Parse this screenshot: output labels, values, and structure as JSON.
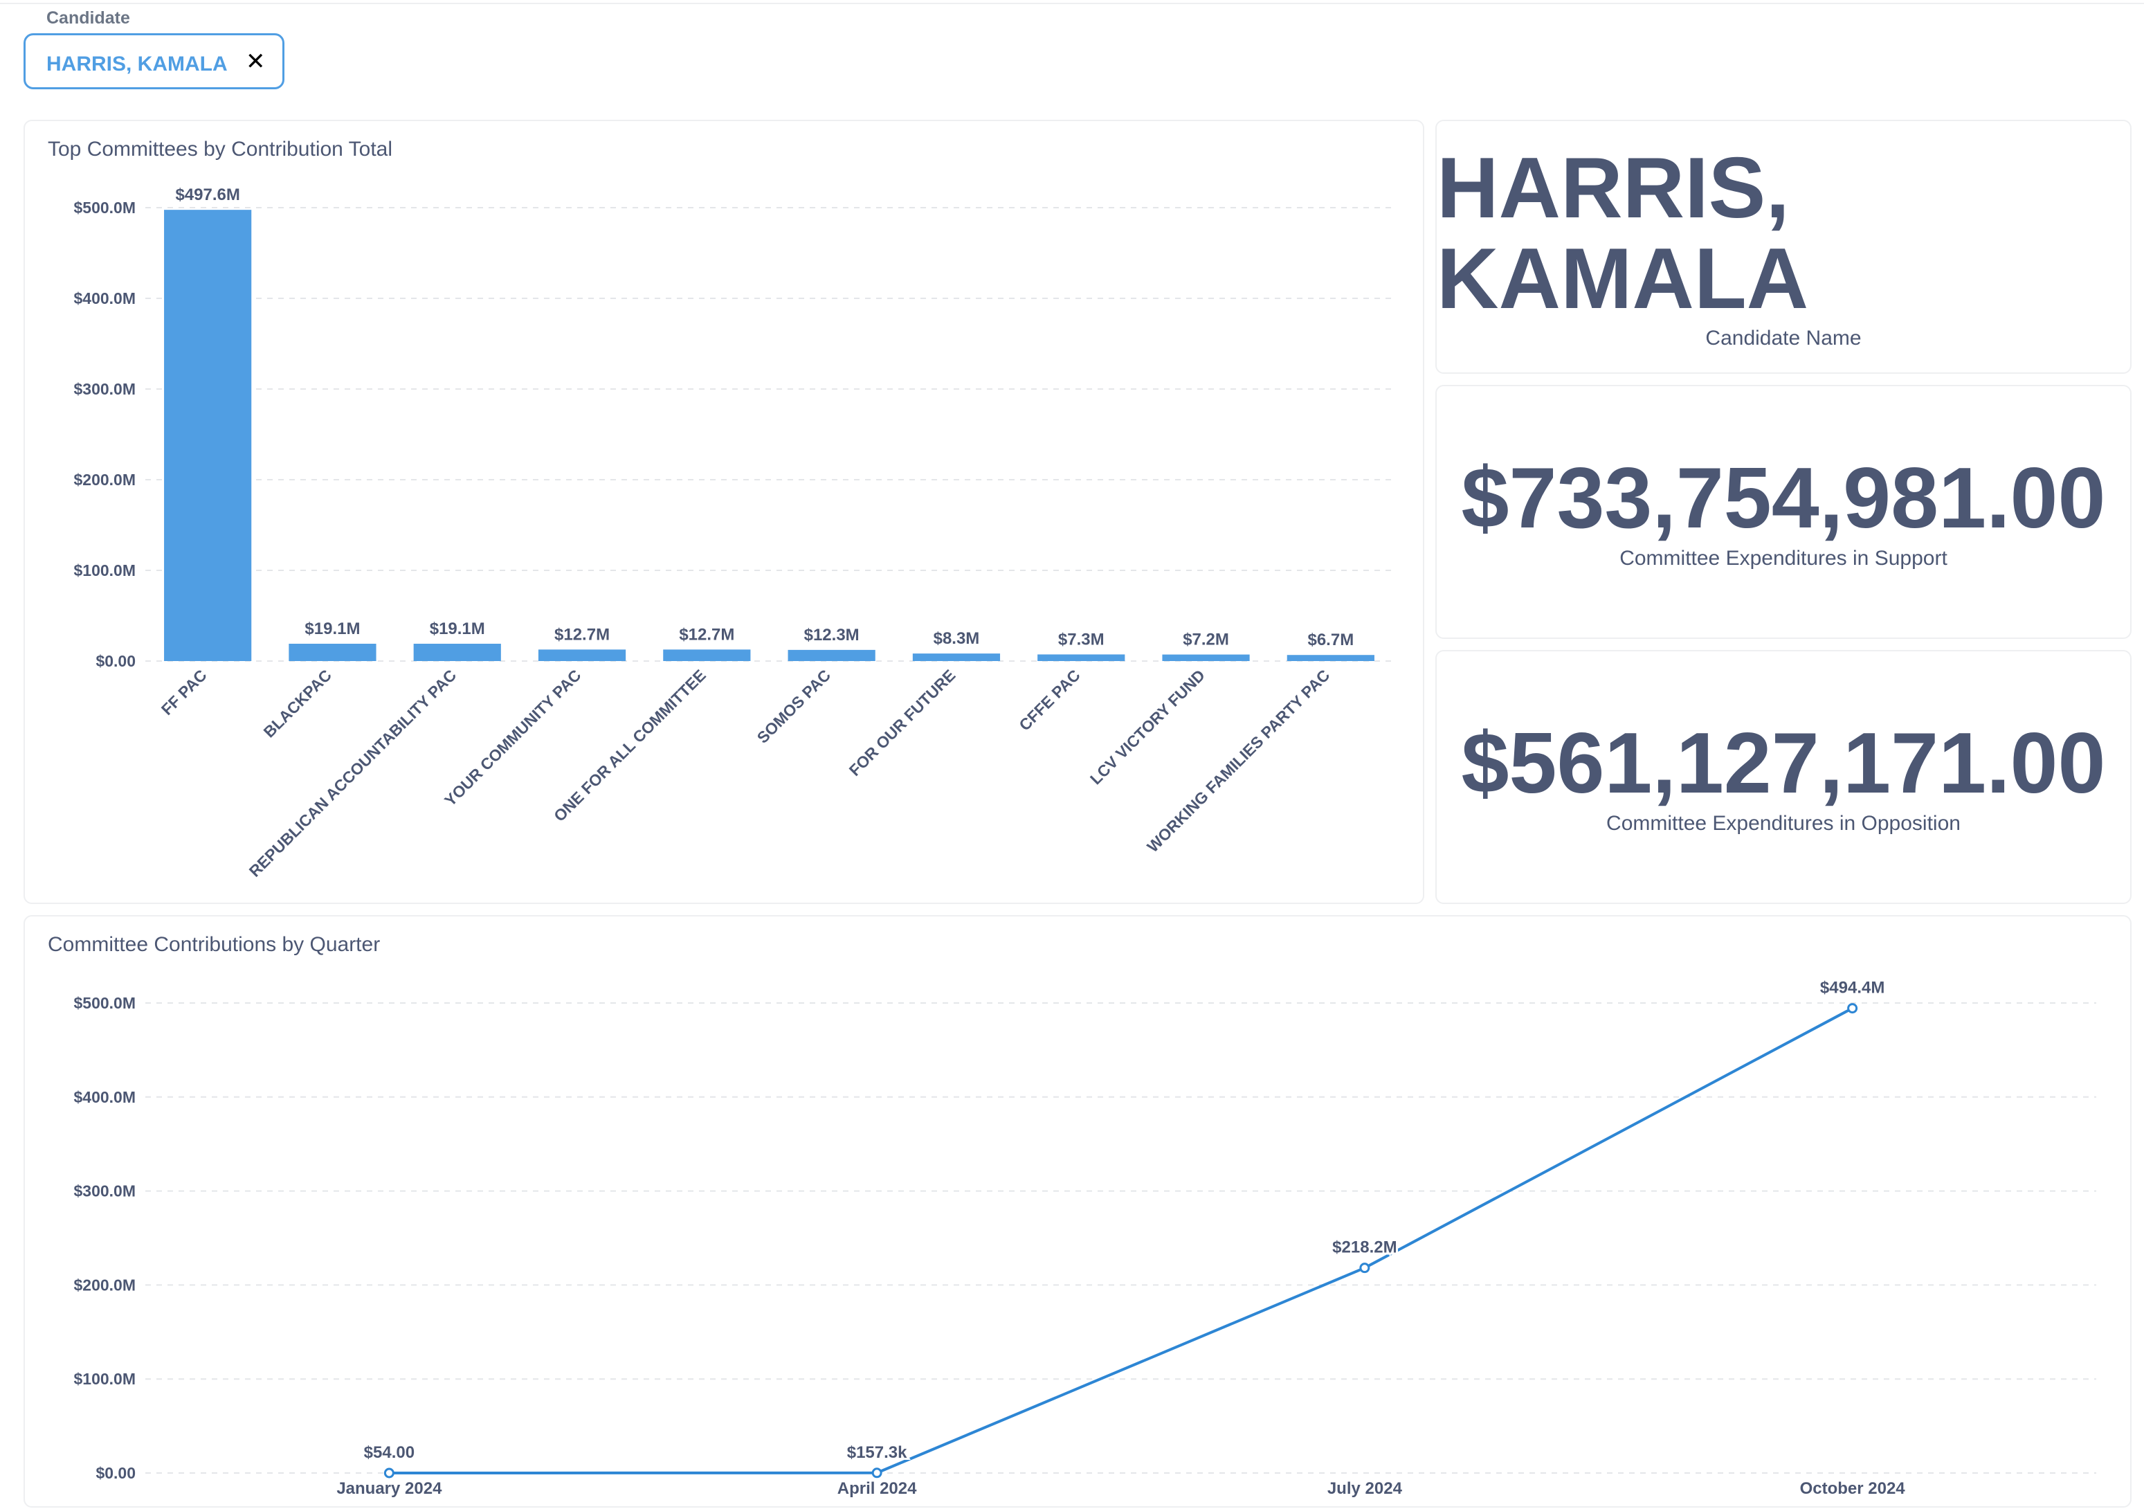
{
  "filter": {
    "label": "Candidate",
    "value": "HARRIS, KAMALA"
  },
  "scalars": [
    {
      "value": "HARRIS, KAMALA",
      "label": "Candidate Name"
    },
    {
      "value": "$733,754,981.00",
      "label": "Committee Expenditures in Support"
    },
    {
      "value": "$561,127,171.00",
      "label": "Committee Expenditures in Opposition"
    }
  ],
  "chart_data": [
    {
      "type": "bar",
      "title": "Top Committees by Contribution Total",
      "categories": [
        "FF PAC",
        "BLACKPAC",
        "REPUBLICAN ACCOUNTABILITY PAC",
        "YOUR COMMUNITY PAC",
        "ONE FOR ALL COMMITTEE",
        "SOMOS PAC",
        "FOR OUR FUTURE",
        "CFFE PAC",
        "LCV VICTORY FUND",
        "WORKING FAMILIES PARTY PAC"
      ],
      "values": [
        497600000,
        19100000,
        19100000,
        12700000,
        12700000,
        12300000,
        8300000,
        7300000,
        7200000,
        6700000
      ],
      "value_labels": [
        "$497.6M",
        "$19.1M",
        "$19.1M",
        "$12.7M",
        "$12.7M",
        "$12.3M",
        "$8.3M",
        "$7.3M",
        "$7.2M",
        "$6.7M"
      ],
      "color": "#509ee3",
      "ylim": [
        0,
        500000000
      ],
      "yticks": [
        {
          "value": 0,
          "label": "$0.00"
        },
        {
          "value": 100000000,
          "label": "$100.0M"
        },
        {
          "value": 200000000,
          "label": "$200.0M"
        },
        {
          "value": 300000000,
          "label": "$300.0M"
        },
        {
          "value": 400000000,
          "label": "$400.0M"
        },
        {
          "value": 500000000,
          "label": "$500.0M"
        }
      ],
      "grid": true
    },
    {
      "type": "line",
      "title": "Committee Contributions by Quarter",
      "categories": [
        "January 2024",
        "April 2024",
        "July 2024",
        "October 2024"
      ],
      "values": [
        54,
        157300,
        218200000,
        494400000
      ],
      "value_labels": [
        "$54.00",
        "$157.3k",
        "$218.2M",
        "$494.4M"
      ],
      "color": "#2d86d4",
      "ylim": [
        0,
        500000000
      ],
      "yticks": [
        {
          "value": 0,
          "label": "$0.00"
        },
        {
          "value": 100000000,
          "label": "$100.0M"
        },
        {
          "value": 200000000,
          "label": "$200.0M"
        },
        {
          "value": 300000000,
          "label": "$300.0M"
        },
        {
          "value": 400000000,
          "label": "$400.0M"
        },
        {
          "value": 500000000,
          "label": "$500.0M"
        }
      ],
      "grid": true
    }
  ]
}
